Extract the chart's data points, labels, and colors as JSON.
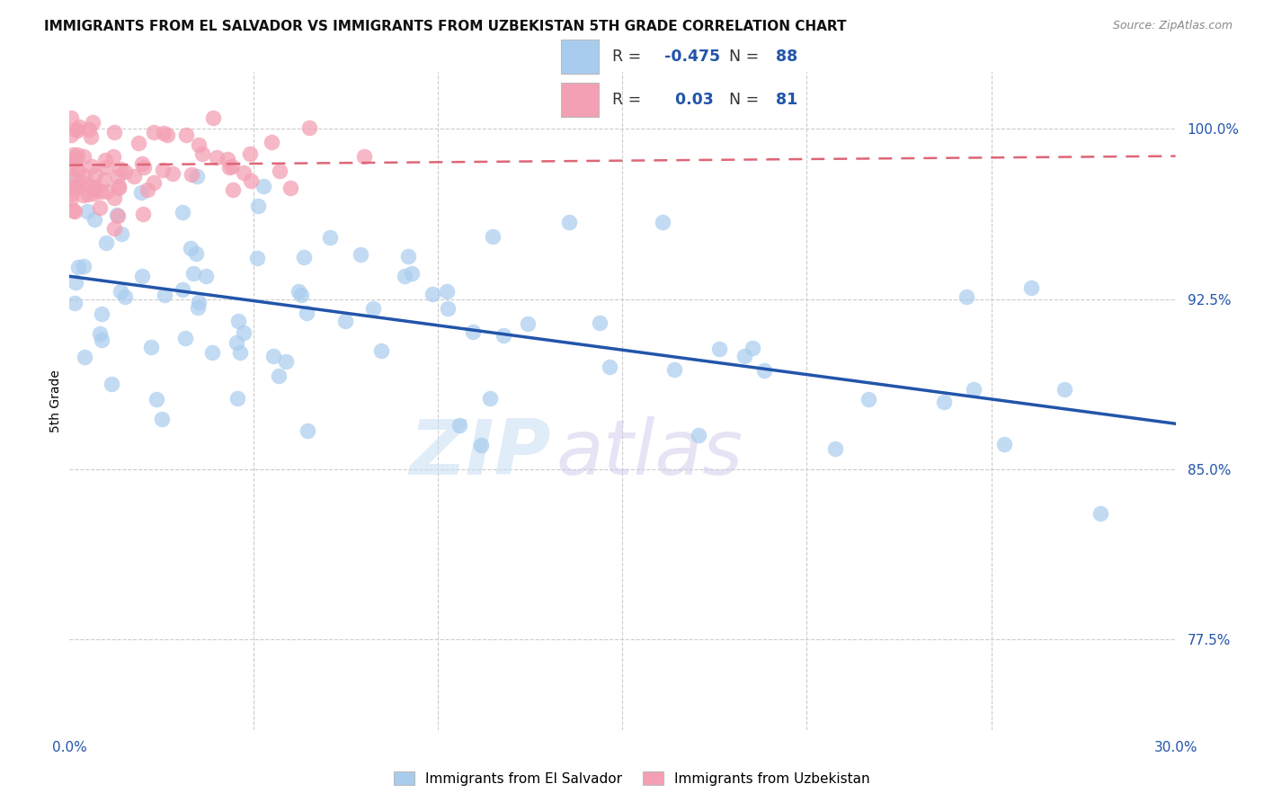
{
  "title": "IMMIGRANTS FROM EL SALVADOR VS IMMIGRANTS FROM UZBEKISTAN 5TH GRADE CORRELATION CHART",
  "source": "Source: ZipAtlas.com",
  "ylabel": "5th Grade",
  "ytick_labels": [
    "100.0%",
    "92.5%",
    "85.0%",
    "77.5%"
  ],
  "ytick_values": [
    1.0,
    0.925,
    0.85,
    0.775
  ],
  "xmin": 0.0,
  "xmax": 0.3,
  "ymin": 0.735,
  "ymax": 1.025,
  "legend_el_salvador": "Immigrants from El Salvador",
  "legend_uzbekistan": "Immigrants from Uzbekistan",
  "R_el_salvador": -0.475,
  "N_el_salvador": 88,
  "R_uzbekistan": 0.03,
  "N_uzbekistan": 81,
  "blue_scatter_color": "#A8CCEE",
  "pink_scatter_color": "#F4A0B4",
  "blue_line_color": "#2255AA",
  "pink_line_color": "#DD6677",
  "axis_color": "#2255AA",
  "grid_color": "#cccccc",
  "blue_trend_x0": 0.0,
  "blue_trend_y0": 0.935,
  "blue_trend_x1": 0.3,
  "blue_trend_y1": 0.87,
  "pink_trend_x0": 0.0,
  "pink_trend_y0": 0.984,
  "pink_trend_x1": 0.3,
  "pink_trend_y1": 0.988
}
